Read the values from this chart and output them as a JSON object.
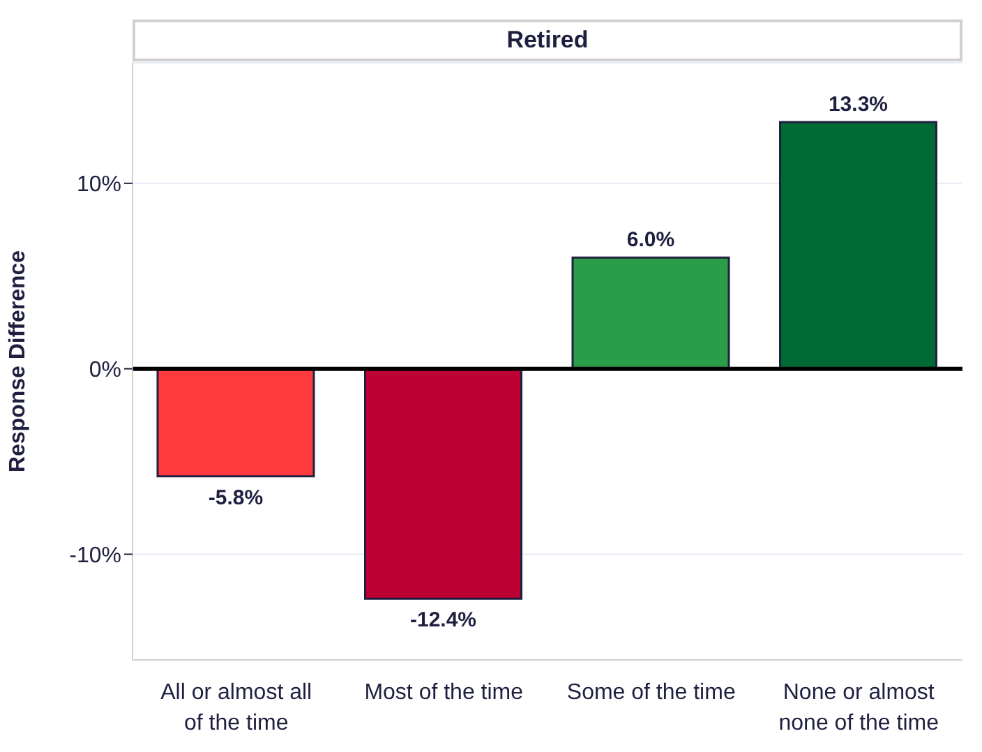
{
  "chart_data": {
    "type": "bar",
    "title": "Retired",
    "ylabel": "Response Difference",
    "categories": [
      "All or almost all of the time",
      "Most of the time",
      "Some of the time",
      "None or almost none of the time"
    ],
    "values": [
      -5.8,
      -12.4,
      6.0,
      13.3
    ],
    "colors": [
      "#ff3b3f",
      "#bd0033",
      "#2a9d48",
      "#006a35"
    ],
    "value_labels": [
      "-5.8%",
      "-12.4%",
      "6.0%",
      "13.3%"
    ],
    "ylim": [
      -15.7,
      16.5
    ],
    "yticks": [
      {
        "value": -10,
        "label": "-10%"
      },
      {
        "value": 0,
        "label": "0%"
      },
      {
        "value": 10,
        "label": "10%"
      }
    ],
    "ref_lines": [
      {
        "axis": "y",
        "value": 0,
        "color": "#000000"
      }
    ],
    "grid": "y"
  }
}
